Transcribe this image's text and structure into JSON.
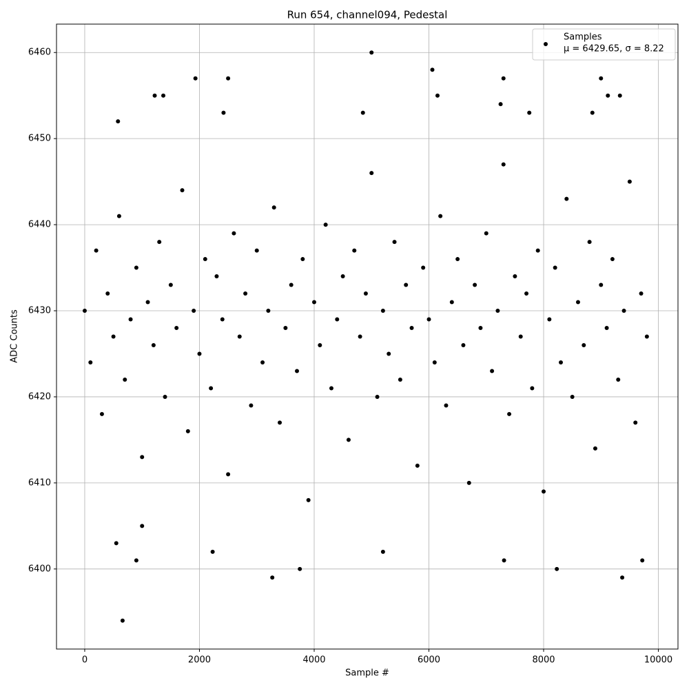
{
  "chart_data": {
    "type": "scatter",
    "title": "Run 654, channel094, Pedestal",
    "xlabel": "Sample #",
    "ylabel": "ADC Counts",
    "xlim": [
      -492,
      10342
    ],
    "ylim": [
      6390.7,
      6463.3
    ],
    "xticks": [
      0,
      2000,
      4000,
      6000,
      8000,
      10000
    ],
    "yticks": [
      6400,
      6410,
      6420,
      6430,
      6440,
      6450,
      6460
    ],
    "grid": true,
    "legend": "upper right",
    "series": [
      {
        "name": "Samples",
        "label": "μ = 6429.65, σ = 8.22",
        "color": "#000000",
        "x": [
          0,
          100,
          200,
          300,
          400,
          500,
          600,
          700,
          800,
          900,
          1000,
          1100,
          1200,
          1300,
          1400,
          1500,
          1600,
          1700,
          1800,
          1900,
          2000,
          2100,
          2200,
          2300,
          2400,
          2500,
          2600,
          2700,
          2800,
          2900,
          3000,
          3100,
          3200,
          3300,
          3400,
          3500,
          3600,
          3700,
          3800,
          3900,
          4000,
          4100,
          4200,
          4300,
          4400,
          4500,
          4600,
          4700,
          4800,
          4900,
          5000,
          5100,
          5200,
          5300,
          5400,
          5500,
          5600,
          5700,
          5800,
          5900,
          6000,
          6100,
          6200,
          6300,
          6400,
          6500,
          6600,
          6700,
          6800,
          6900,
          7000,
          7100,
          7200,
          7300,
          7400,
          7500,
          7600,
          7700,
          7800,
          7900,
          8000,
          8100,
          8200,
          8300,
          8400,
          8500,
          8600,
          8700,
          8800,
          8900,
          9000,
          9100,
          9200,
          9300,
          9400,
          9500,
          9600,
          9700,
          9800,
          660,
          900,
          1930,
          2500,
          3270,
          3750,
          5000,
          6060,
          7300,
          7310,
          8230,
          9000,
          9370,
          9720,
          580,
          1220,
          1370,
          4850,
          5200,
          2230,
          1000,
          550,
          2420,
          6150,
          7250,
          7750,
          8850,
          9120,
          9330
        ],
        "y": [
          6430,
          6424,
          6437,
          6418,
          6432,
          6427,
          6441,
          6422,
          6429,
          6435,
          6413,
          6431,
          6426,
          6438,
          6420,
          6433,
          6428,
          6444,
          6416,
          6430,
          6425,
          6436,
          6421,
          6434,
          6429,
          6411,
          6439,
          6427,
          6432,
          6419,
          6437,
          6424,
          6430,
          6442,
          6417,
          6428,
          6433,
          6423,
          6436,
          6408,
          6431,
          6426,
          6440,
          6421,
          6429,
          6434,
          6415,
          6437,
          6427,
          6432,
          6446,
          6420,
          6430,
          6425,
          6438,
          6422,
          6433,
          6428,
          6412,
          6435,
          6429,
          6424,
          6441,
          6419,
          6431,
          6436,
          6426,
          6410,
          6433,
          6428,
          6439,
          6423,
          6430,
          6447,
          6418,
          6434,
          6427,
          6432,
          6421,
          6437,
          6409,
          6429,
          6435,
          6424,
          6443,
          6420,
          6431,
          6426,
          6438,
          6414,
          6433,
          6428,
          6436,
          6422,
          6430,
          6445,
          6417,
          6432,
          6427,
          6394,
          6401,
          6457,
          6457,
          6399,
          6400,
          6460,
          6458,
          6457,
          6401,
          6400,
          6457,
          6399,
          6401,
          6452,
          6455,
          6455,
          6453,
          6402,
          6402,
          6405,
          6403,
          6453,
          6455,
          6454,
          6453,
          6453,
          6455,
          6455
        ]
      }
    ]
  }
}
